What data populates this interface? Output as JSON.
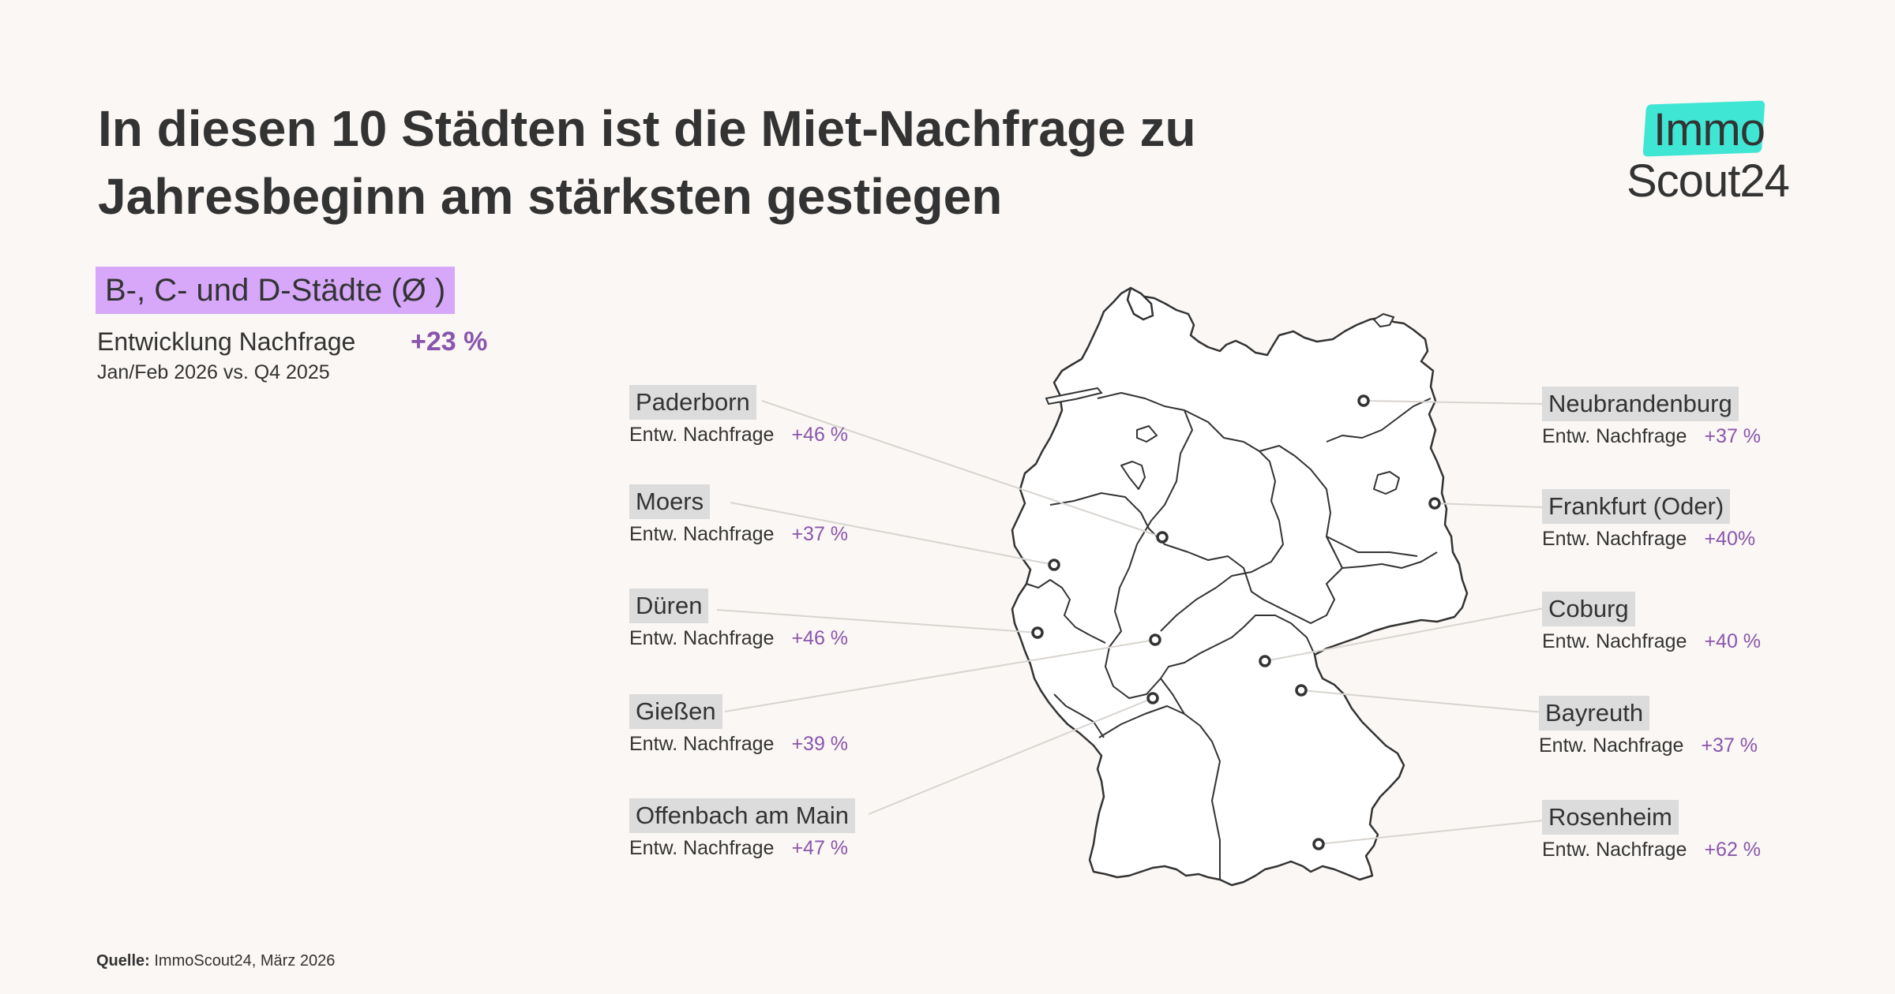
{
  "title": "In diesen 10 Städten ist die Miet-Nachfrage zu Jahresbeginn am stärksten gestiegen",
  "logo": {
    "line1": "Immo",
    "line2": "Scout24",
    "accent_color": "#3fe6d4"
  },
  "category": {
    "label": "B-, C- und D-Städte (Ø )",
    "color": "#d7a8fa"
  },
  "summary": {
    "label": "Entwicklung Nachfrage",
    "value": "+23 %",
    "period": "Jan/Feb 2026 vs. Q4 2025"
  },
  "row_label": "Entw. Nachfrage",
  "cities": [
    {
      "name": "Paderborn",
      "value": "+46 %"
    },
    {
      "name": "Moers",
      "value": "+37 %"
    },
    {
      "name": "Düren",
      "value": "+46 %"
    },
    {
      "name": "Gießen",
      "value": "+39 %"
    },
    {
      "name": "Offenbach am Main",
      "value": "+47 %"
    },
    {
      "name": "Neubrandenburg",
      "value": "+37 %"
    },
    {
      "name": "Frankfurt (Oder)",
      "value": "+40%"
    },
    {
      "name": "Coburg",
      "value": "+40 %"
    },
    {
      "name": "Bayreuth",
      "value": "+37 %"
    },
    {
      "name": "Rosenheim",
      "value": "+62 %"
    }
  ],
  "source": {
    "label": "Quelle:",
    "text": "ImmoScout24, März 2026"
  },
  "colors": {
    "value": "#8a56ad",
    "text": "#333333",
    "background": "#faf7f4"
  }
}
